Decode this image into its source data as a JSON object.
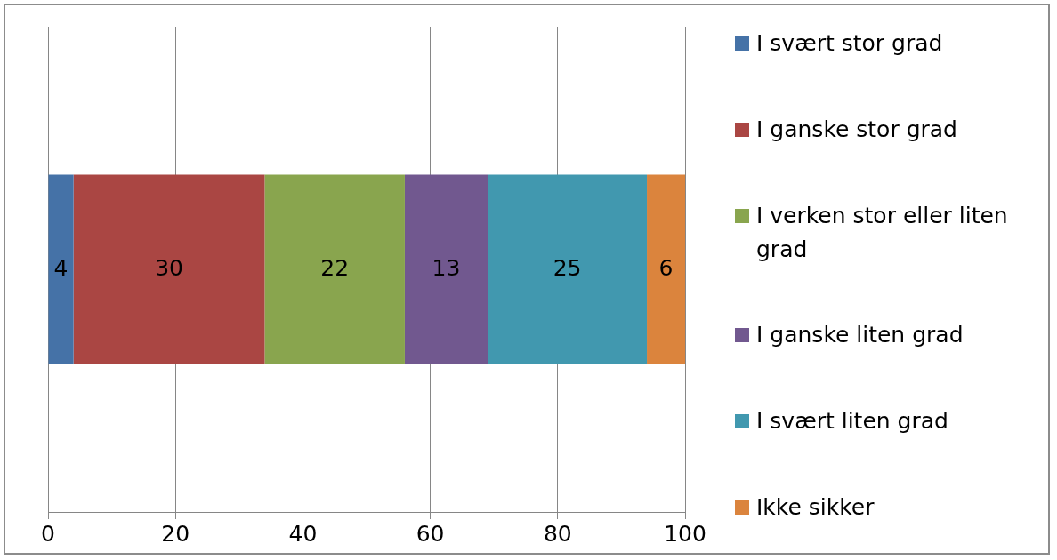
{
  "chart_data": {
    "type": "bar",
    "orientation": "horizontal",
    "stacked": true,
    "categories": [
      null
    ],
    "series": [
      {
        "name": "I svært stor grad",
        "color": "#4572a7",
        "values": [
          4
        ]
      },
      {
        "name": "I ganske stor grad",
        "color": "#aa4643",
        "values": [
          30
        ]
      },
      {
        "name": "I verken stor eller liten grad",
        "color": "#89a54e",
        "values": [
          22
        ]
      },
      {
        "name": "I ganske liten grad",
        "color": "#71588f",
        "values": [
          13
        ]
      },
      {
        "name": "I svært liten grad",
        "color": "#4198af",
        "values": [
          25
        ]
      },
      {
        "name": "Ikke sikker",
        "color": "#db843d",
        "values": [
          6
        ]
      }
    ],
    "xlim": [
      0,
      100
    ],
    "xticks": [
      0,
      20,
      40,
      60,
      80,
      100
    ],
    "grid": "x",
    "legend": "right",
    "data_labels": true
  }
}
